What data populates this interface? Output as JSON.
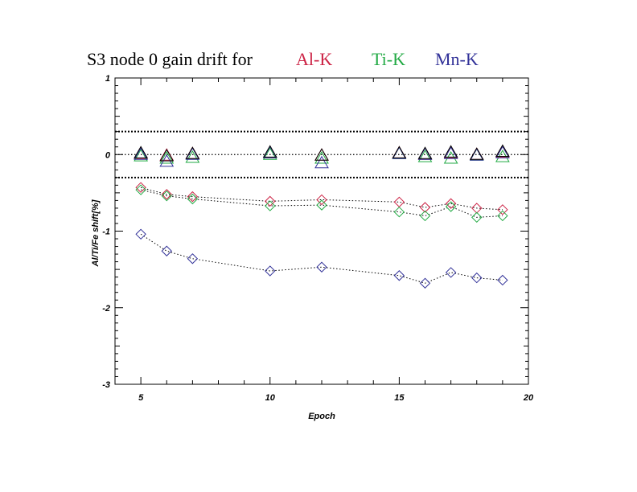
{
  "chart_data": {
    "type": "scatter",
    "title": {
      "prefix": "S3 node 0 gain drift for",
      "labels": [
        {
          "text": "Al-K",
          "color": "#cc2244"
        },
        {
          "text": "Ti-K",
          "color": "#22aa44"
        },
        {
          "text": "Mn-K",
          "color": "#333399"
        }
      ]
    },
    "xlabel": "Epoch",
    "ylabel": "Al/Ti/Fe shift[%]",
    "xlim": [
      4,
      20
    ],
    "ylim": [
      -3,
      1
    ],
    "xticks": [
      5,
      10,
      15,
      20
    ],
    "yticks": [
      1,
      0,
      -1,
      -2,
      -3
    ],
    "reference_lines": [
      {
        "y": 0.3,
        "style": "dotted-thick"
      },
      {
        "y": 0,
        "style": "dotted"
      },
      {
        "y": -0.3,
        "style": "dotted-thick"
      }
    ],
    "triangle_series": [
      {
        "name": "Al-K",
        "marker": "triangle",
        "color": "#cc2244",
        "x": [
          5,
          6,
          7,
          10,
          12,
          15,
          16,
          17,
          18,
          19
        ],
        "y": [
          0.01,
          -0.01,
          0.01,
          0.02,
          -0.01,
          0.02,
          0.0,
          0.02,
          0.0,
          0.03
        ]
      },
      {
        "name": "Ti-K",
        "marker": "triangle",
        "color": "#22aa44",
        "x": [
          5,
          6,
          7,
          10,
          12,
          15,
          16,
          17,
          18,
          19
        ],
        "y": [
          -0.02,
          -0.05,
          -0.04,
          0.0,
          -0.05,
          0.01,
          -0.03,
          -0.05,
          -0.01,
          -0.03
        ]
      },
      {
        "name": "Mn-K",
        "marker": "triangle",
        "color": "#333399",
        "x": [
          5,
          6,
          7,
          10,
          12,
          15,
          16,
          17,
          18,
          19
        ],
        "y": [
          0.0,
          -0.09,
          0.0,
          0.02,
          -0.11,
          0.01,
          0.0,
          0.01,
          -0.01,
          0.02
        ]
      },
      {
        "name": "reference",
        "marker": "triangle",
        "color": "#000000",
        "x": [
          5,
          6,
          7,
          10,
          12,
          15,
          16,
          17,
          18,
          19
        ],
        "y": [
          0.02,
          -0.02,
          0.01,
          0.03,
          -0.01,
          0.02,
          0.01,
          0.03,
          0.0,
          0.04
        ]
      }
    ],
    "diamond_series": [
      {
        "name": "Al-K",
        "marker": "diamond",
        "color": "#cc2244",
        "x": [
          5,
          6,
          7,
          10,
          12,
          15,
          16,
          17,
          18,
          19
        ],
        "y": [
          -0.43,
          -0.52,
          -0.55,
          -0.61,
          -0.59,
          -0.62,
          -0.69,
          -0.64,
          -0.7,
          -0.72
        ]
      },
      {
        "name": "Ti-K",
        "marker": "diamond",
        "color": "#22aa44",
        "x": [
          5,
          6,
          7,
          10,
          12,
          15,
          16,
          17,
          18,
          19
        ],
        "y": [
          -0.46,
          -0.54,
          -0.58,
          -0.67,
          -0.66,
          -0.75,
          -0.8,
          -0.68,
          -0.82,
          -0.8
        ]
      },
      {
        "name": "Mn-K",
        "marker": "diamond",
        "color": "#333399",
        "x": [
          5,
          6,
          7,
          10,
          12,
          15,
          16,
          17,
          18,
          19
        ],
        "y": [
          -1.04,
          -1.26,
          -1.36,
          -1.52,
          -1.47,
          -1.58,
          -1.68,
          -1.54,
          -1.61,
          -1.64
        ]
      }
    ]
  }
}
